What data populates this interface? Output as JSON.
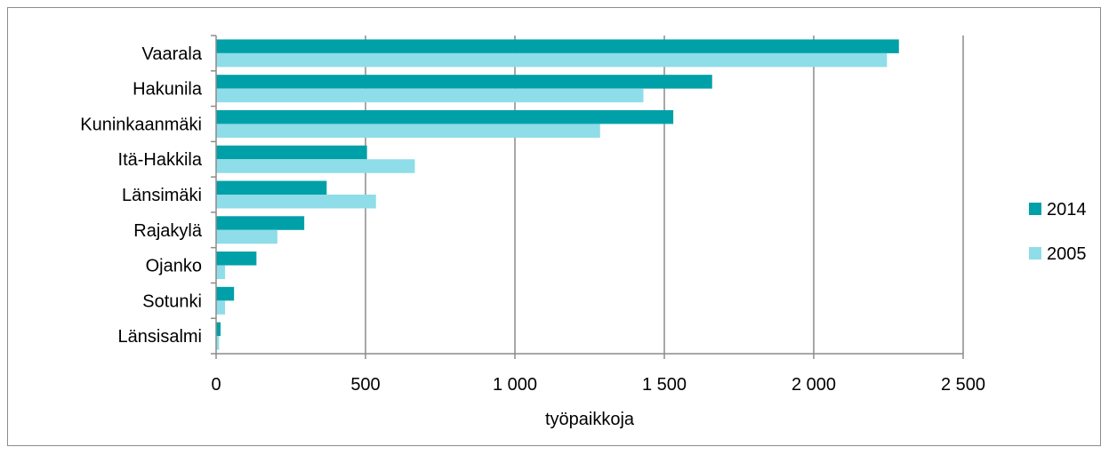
{
  "chart_data": {
    "type": "bar",
    "orientation": "horizontal",
    "categories": [
      "Vaarala",
      "Hakunila",
      "Kuninkaanmäki",
      "Itä-Hakkila",
      "Länsimäki",
      "Rajakylä",
      "Ojanko",
      "Sotunki",
      "Länsisalmi"
    ],
    "series": [
      {
        "name": "2014",
        "color": "#00A0A8",
        "values": [
          2285,
          1660,
          1530,
          505,
          370,
          295,
          135,
          60,
          15
        ]
      },
      {
        "name": "2005",
        "color": "#8EDDE8",
        "values": [
          2245,
          1430,
          1285,
          665,
          535,
          205,
          30,
          30,
          10
        ]
      }
    ],
    "xlabel": "työpaikkoja",
    "xlim": [
      0,
      2500
    ],
    "xticks": [
      0,
      500,
      1000,
      1500,
      2000,
      2500
    ],
    "xtick_labels": [
      "0",
      "500",
      "1 000",
      "1 500",
      "2 000",
      "2 500"
    ],
    "grid": "vertical",
    "legend_position": "right"
  }
}
